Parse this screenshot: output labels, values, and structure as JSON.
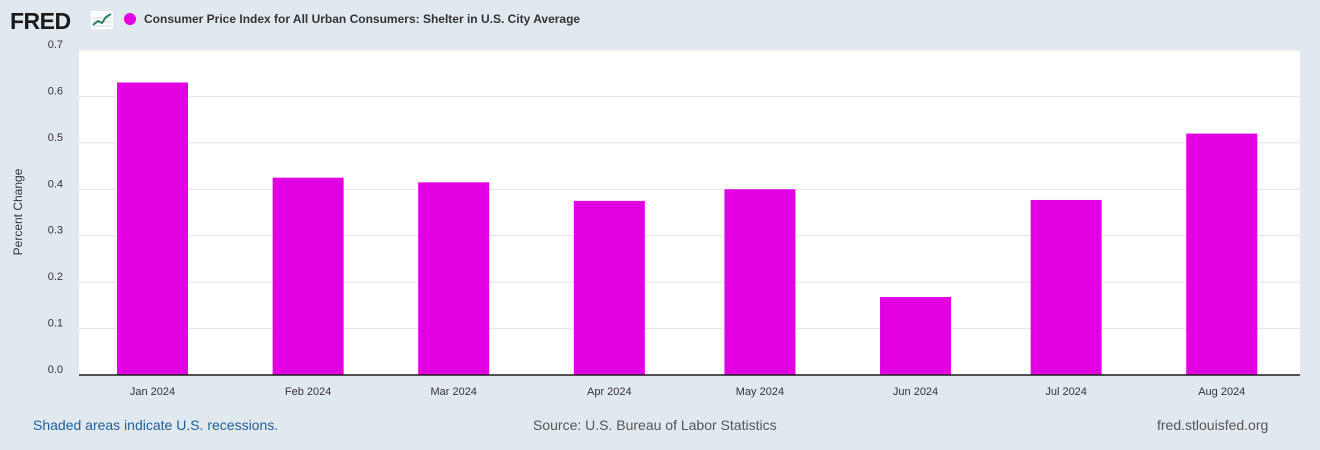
{
  "header": {
    "logo_text": "FRED",
    "logo_icon": "trend-line-icon",
    "series_title": "Consumer Price Index for All Urban Consumers: Shelter in U.S. City Average"
  },
  "chart_data": {
    "type": "bar",
    "title": "Consumer Price Index for All Urban Consumers: Shelter in U.S. City Average",
    "xlabel": "",
    "ylabel": "Percent Change",
    "categories": [
      "Jan 2024",
      "Feb 2024",
      "Mar 2024",
      "Apr 2024",
      "May 2024",
      "Jun 2024",
      "Jul 2024",
      "Aug 2024"
    ],
    "values": [
      0.63,
      0.425,
      0.415,
      0.375,
      0.4,
      0.168,
      0.377,
      0.52
    ],
    "ylim": [
      0,
      0.7
    ],
    "yticks": [
      "0.0",
      "0.1",
      "0.2",
      "0.3",
      "0.4",
      "0.5",
      "0.6",
      "0.7"
    ],
    "bar_color": "#e100e1",
    "grid": true
  },
  "footer": {
    "recession_note": "Shaded areas indicate U.S. recessions.",
    "source": "Source: U.S. Bureau of Labor Statistics",
    "site": "fred.stlouisfed.org"
  },
  "colors": {
    "background": "#e1e9f0",
    "plot_background": "#ffffff",
    "link": "#1f5f9a"
  }
}
